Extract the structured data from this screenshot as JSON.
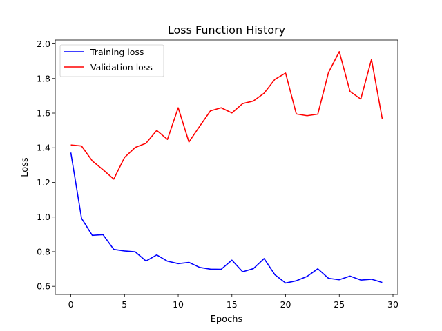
{
  "chart_data": {
    "type": "line",
    "title": "Loss Function History",
    "xlabel": "Epochs",
    "ylabel": "Loss",
    "xlim": [
      -1.45,
      30.45
    ],
    "ylim": [
      0.553,
      2.022
    ],
    "x_ticks": [
      0,
      5,
      10,
      15,
      20,
      25,
      30
    ],
    "y_ticks": [
      0.6,
      0.8,
      1.0,
      1.2,
      1.4,
      1.6,
      1.8,
      2.0
    ],
    "grid": false,
    "legend_position": "upper-left",
    "x": [
      0,
      1,
      2,
      3,
      4,
      5,
      6,
      7,
      8,
      9,
      10,
      11,
      12,
      13,
      14,
      15,
      16,
      17,
      18,
      19,
      20,
      21,
      22,
      23,
      24,
      25,
      26,
      27,
      28,
      29
    ],
    "series": [
      {
        "name": "Training loss",
        "color": "#0000ff",
        "values": [
          1.372,
          0.992,
          0.894,
          0.898,
          0.813,
          0.804,
          0.799,
          0.746,
          0.781,
          0.745,
          0.731,
          0.738,
          0.709,
          0.699,
          0.698,
          0.751,
          0.684,
          0.702,
          0.76,
          0.667,
          0.619,
          0.632,
          0.657,
          0.701,
          0.646,
          0.638,
          0.659,
          0.636,
          0.641,
          0.622
        ]
      },
      {
        "name": "Validation loss",
        "color": "#ff0000",
        "values": [
          1.416,
          1.41,
          1.324,
          1.273,
          1.219,
          1.344,
          1.402,
          1.426,
          1.5,
          1.448,
          1.631,
          1.433,
          1.524,
          1.613,
          1.631,
          1.601,
          1.655,
          1.67,
          1.715,
          1.795,
          1.831,
          1.595,
          1.585,
          1.594,
          1.835,
          1.955,
          1.725,
          1.681,
          1.91,
          1.568
        ]
      }
    ]
  }
}
